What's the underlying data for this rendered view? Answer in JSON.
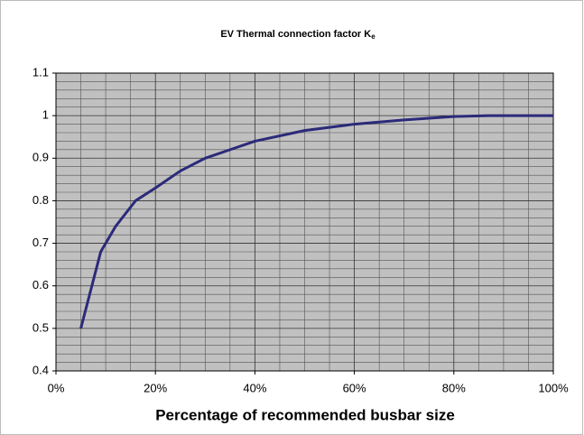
{
  "chart_data": {
    "type": "line",
    "title": "EV Thermal connection factor K",
    "title_subscript": "e",
    "x_label": "Percentage of recommended busbar size",
    "x": [
      5,
      9,
      12,
      16,
      20,
      25,
      30,
      35,
      40,
      50,
      60,
      70,
      80,
      87,
      100
    ],
    "series": [
      {
        "name": "Ke",
        "color": "#2b2a7a",
        "values": [
          0.5,
          0.68,
          0.74,
          0.8,
          0.83,
          0.87,
          0.9,
          0.92,
          0.94,
          0.965,
          0.98,
          0.99,
          0.998,
          1.0,
          1.0
        ]
      }
    ],
    "xlim": [
      0,
      100
    ],
    "xticks": [
      {
        "value": 0,
        "label": "0%"
      },
      {
        "value": 20,
        "label": "20%"
      },
      {
        "value": 40,
        "label": "40%"
      },
      {
        "value": 60,
        "label": "60%"
      },
      {
        "value": 80,
        "label": "80%"
      },
      {
        "value": 100,
        "label": "100%"
      }
    ],
    "minor_xticks": [
      5,
      10,
      15,
      25,
      30,
      35,
      45,
      50,
      55,
      65,
      70,
      75,
      85,
      90,
      95
    ],
    "ylim": [
      0.4,
      1.1
    ],
    "yticks": [
      0.4,
      0.5,
      0.6,
      0.7,
      0.8,
      0.9,
      1,
      1.1
    ],
    "minor_yticks": [
      0.42,
      0.44,
      0.46,
      0.48,
      0.52,
      0.54,
      0.56,
      0.58,
      0.62,
      0.64,
      0.66,
      0.68,
      0.72,
      0.74,
      0.76,
      0.78,
      0.82,
      0.84,
      0.86,
      0.88,
      0.92,
      0.94,
      0.96,
      0.98,
      1.02,
      1.04,
      1.06,
      1.08
    ],
    "grid": true,
    "plot_background": "#c0c0c0"
  }
}
